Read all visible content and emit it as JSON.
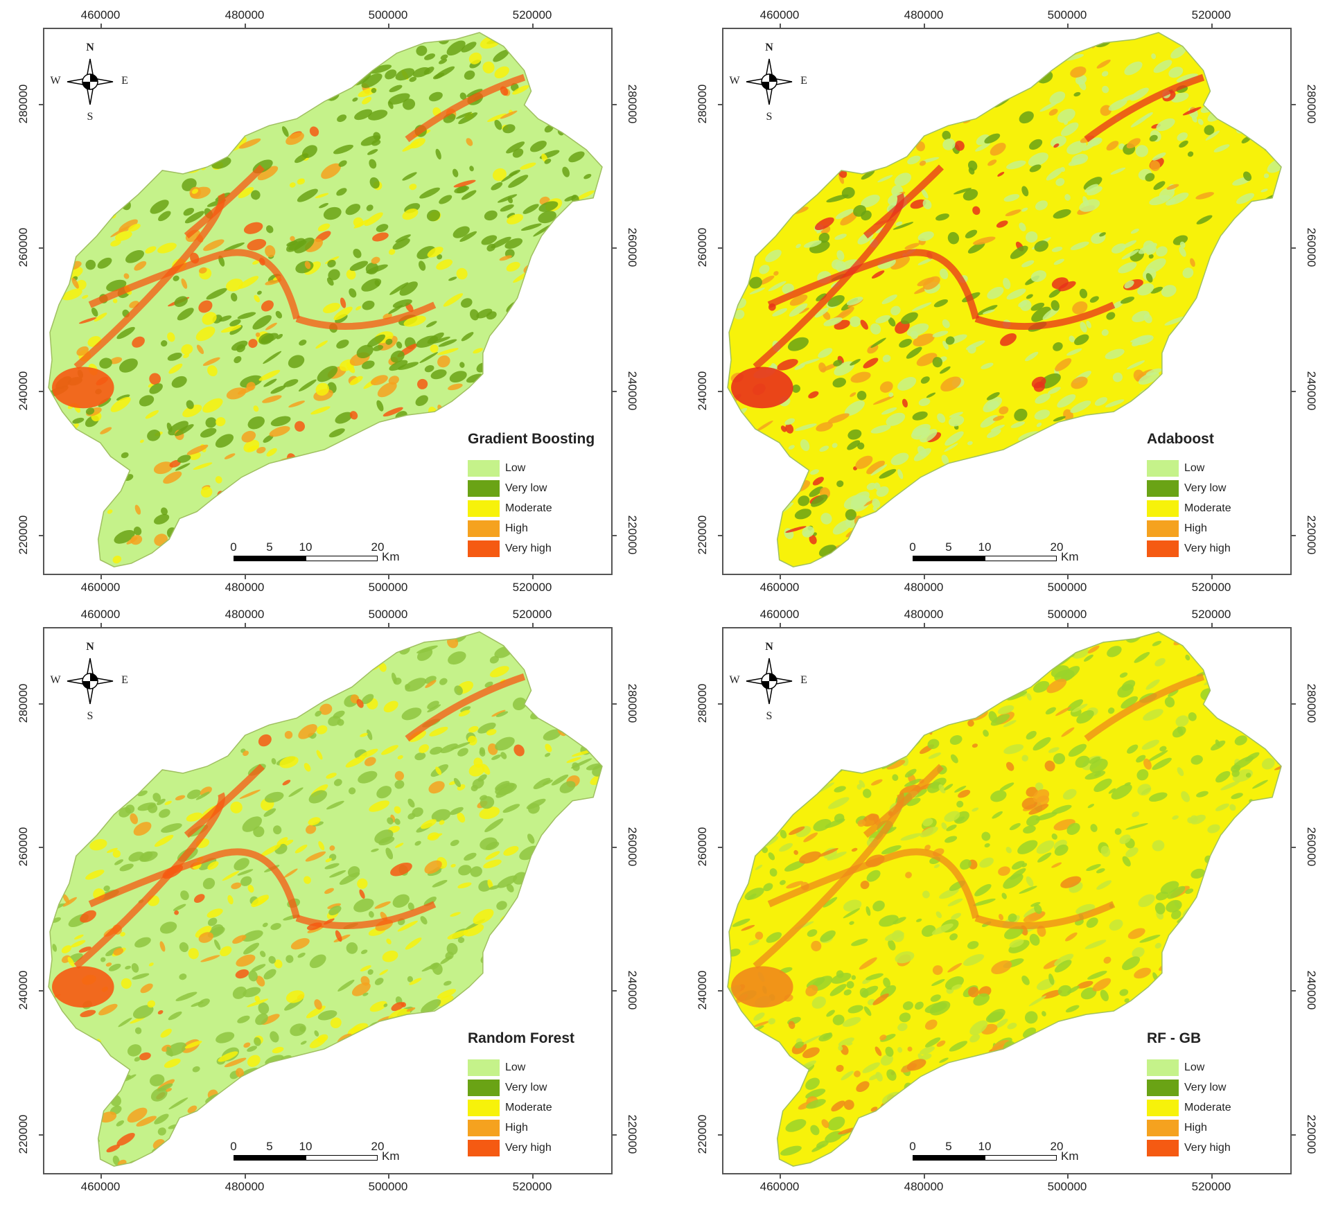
{
  "axis": {
    "x_ticks": [
      "460000",
      "480000",
      "500000",
      "520000"
    ],
    "y_ticks": [
      "280000",
      "260000",
      "240000",
      "220000"
    ]
  },
  "compass": {
    "n": "N",
    "s": "S",
    "e": "E",
    "w": "W"
  },
  "scale_bar": {
    "labels": [
      "0",
      "5",
      "10",
      "20"
    ],
    "unit": "Km"
  },
  "legend_classes": [
    {
      "label": "Low",
      "color": "#c5f28a"
    },
    {
      "label": "Very low",
      "color": "#6aa315"
    },
    {
      "label": "Moderate",
      "color": "#f7f20a"
    },
    {
      "label": "High",
      "color": "#f5a21f"
    },
    {
      "label": "Very high",
      "color": "#f55a12"
    }
  ],
  "panels": [
    {
      "title": "Gradient Boosting"
    },
    {
      "title": "Adaboost"
    },
    {
      "title": "Random Forest"
    },
    {
      "title": "RF - GB"
    }
  ]
}
